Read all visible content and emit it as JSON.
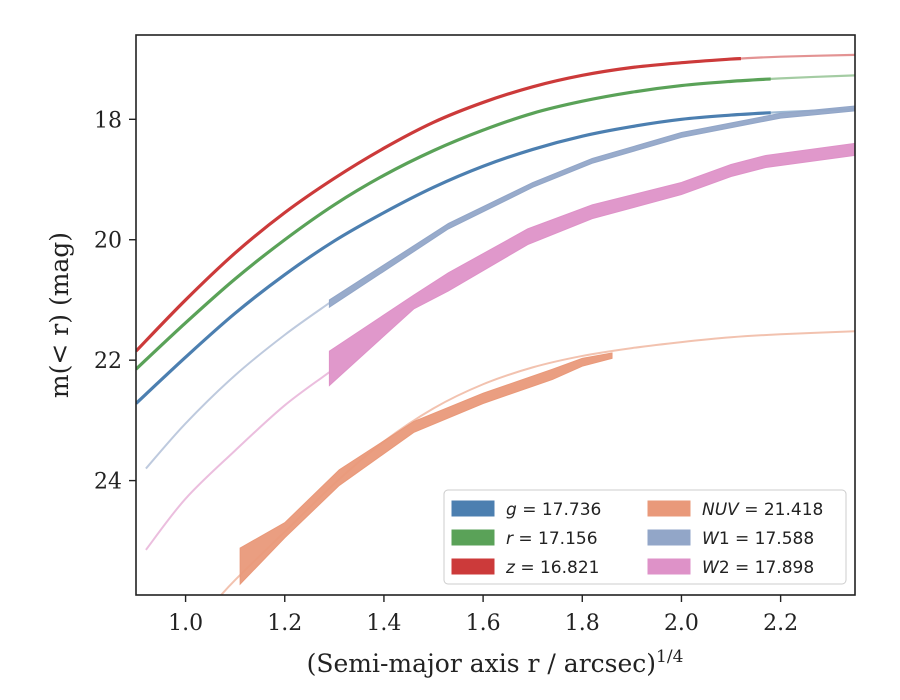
{
  "chart_data": {
    "type": "line",
    "xlabel": "(Semi-major axis r / arcsec)",
    "xlabel_exponent": "1/4",
    "ylabel": "m(< r) (mag)",
    "xlim": [
      0.9,
      2.35
    ],
    "ylim": [
      25.9,
      16.6
    ],
    "y_inverted": true,
    "grid": false,
    "legend_position": "lower-right",
    "x_ticks": [
      1.0,
      1.2,
      1.4,
      1.6,
      1.8,
      2.0,
      2.2
    ],
    "x_tick_labels": [
      "1.0",
      "1.2",
      "1.4",
      "1.6",
      "1.8",
      "2.0",
      "2.2"
    ],
    "y_ticks": [
      18,
      20,
      22,
      24
    ],
    "y_tick_labels": [
      "18",
      "20",
      "22",
      "24"
    ],
    "series": [
      {
        "name": "g = 17.736",
        "band": "g",
        "value": "17.736",
        "italic_part": "g",
        "color": "#4c7fb0",
        "style": "thin-line",
        "x": [
          0.9,
          1.0,
          1.1,
          1.2,
          1.3,
          1.4,
          1.5,
          1.6,
          1.7,
          1.8,
          1.9,
          2.0,
          2.1,
          2.2,
          2.35
        ],
        "y": [
          22.72,
          21.95,
          21.22,
          20.58,
          20.02,
          19.55,
          19.13,
          18.78,
          18.5,
          18.28,
          18.12,
          18.0,
          17.93,
          17.88,
          17.83
        ],
        "measured_range": [
          0.9,
          2.18
        ]
      },
      {
        "name": "r = 17.156",
        "band": "r",
        "value": "17.156",
        "italic_part": "r",
        "color": "#5aa258",
        "style": "thin-line",
        "x": [
          0.9,
          1.0,
          1.1,
          1.2,
          1.3,
          1.4,
          1.5,
          1.6,
          1.7,
          1.8,
          1.9,
          2.0,
          2.1,
          2.2,
          2.35
        ],
        "y": [
          22.15,
          21.38,
          20.65,
          20.0,
          19.42,
          18.93,
          18.52,
          18.18,
          17.9,
          17.7,
          17.55,
          17.44,
          17.37,
          17.32,
          17.27
        ],
        "measured_range": [
          0.9,
          2.18
        ]
      },
      {
        "name": "z = 16.821",
        "band": "z",
        "value": "16.821",
        "italic_part": "z",
        "color": "#cc3a3a",
        "style": "thin-line",
        "x": [
          0.9,
          1.0,
          1.1,
          1.2,
          1.3,
          1.4,
          1.5,
          1.6,
          1.7,
          1.8,
          1.9,
          2.0,
          2.1,
          2.2,
          2.35
        ],
        "y": [
          21.85,
          21.0,
          20.22,
          19.55,
          18.98,
          18.48,
          18.05,
          17.72,
          17.46,
          17.27,
          17.14,
          17.06,
          17.0,
          16.96,
          16.93
        ],
        "measured_range": [
          0.9,
          2.12
        ]
      },
      {
        "name": "NUV = 21.418",
        "band": "NUV",
        "value": "21.418",
        "italic_part": "NUV",
        "color": "#e9997a",
        "style": "band",
        "x_model": [
          0.9,
          1.0,
          1.05,
          1.1,
          1.2,
          1.3,
          1.4,
          1.5,
          1.6,
          1.7,
          1.8,
          1.9,
          2.0,
          2.1,
          2.2,
          2.35
        ],
        "y_model": [
          27.5,
          26.55,
          26.1,
          25.65,
          24.85,
          24.05,
          23.35,
          22.8,
          22.4,
          22.12,
          21.93,
          21.8,
          21.7,
          21.62,
          21.57,
          21.52
        ],
        "x": [
          1.11,
          1.2,
          1.31,
          1.46,
          1.6,
          1.74,
          1.8,
          1.86
        ],
        "y_upper": [
          25.12,
          24.7,
          23.82,
          23.02,
          22.55,
          22.15,
          21.97,
          21.88
        ],
        "y_lower": [
          25.72,
          24.95,
          24.08,
          23.2,
          22.72,
          22.32,
          22.1,
          21.97
        ]
      },
      {
        "name": "W1 = 17.588",
        "band": "W1",
        "value": "17.588",
        "italic_part": "W",
        "color": "#92a6c8",
        "style": "band",
        "x_model": [
          0.92,
          1.0,
          1.1,
          1.2,
          1.29
        ],
        "y_model": [
          23.8,
          23.05,
          22.25,
          21.58,
          21.05
        ],
        "x": [
          1.29,
          1.53,
          1.7,
          1.82,
          2.0,
          2.2,
          2.35
        ],
        "y_upper": [
          21.0,
          19.73,
          19.05,
          18.65,
          18.22,
          17.9,
          17.78
        ],
        "y_lower": [
          21.12,
          19.82,
          19.13,
          18.73,
          18.3,
          17.98,
          17.86
        ]
      },
      {
        "name": "W2 = 17.898",
        "band": "W2",
        "value": "17.898",
        "italic_part": "W",
        "color": "#de92c8",
        "style": "band",
        "x_model": [
          0.92,
          1.0,
          1.1,
          1.2,
          1.29
        ],
        "y_model": [
          25.15,
          24.3,
          23.5,
          22.75,
          22.2
        ],
        "x": [
          1.29,
          1.46,
          1.53,
          1.69,
          1.82,
          2.0,
          2.1,
          2.17,
          2.35
        ],
        "y_upper": [
          21.85,
          20.92,
          20.55,
          19.82,
          19.42,
          19.05,
          18.75,
          18.6,
          18.4
        ],
        "y_lower": [
          22.42,
          21.15,
          20.85,
          20.08,
          19.65,
          19.25,
          18.95,
          18.8,
          18.6
        ]
      }
    ],
    "legend_columns": [
      [
        "g = 17.736",
        "r = 17.156",
        "z = 16.821"
      ],
      [
        "NUV = 21.418",
        "W1 = 17.588",
        "W2 = 17.898"
      ]
    ]
  }
}
